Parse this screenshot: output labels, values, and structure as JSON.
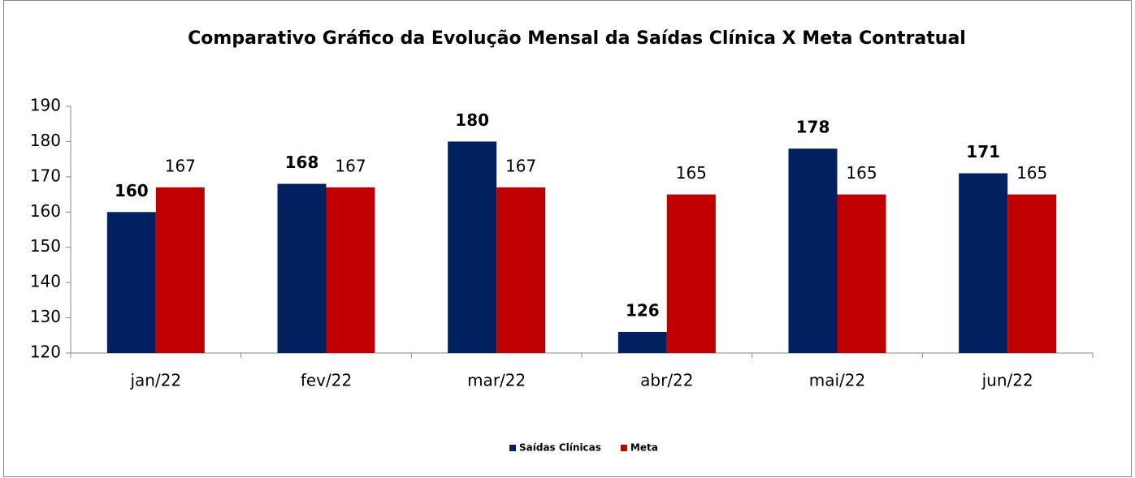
{
  "chart_data": {
    "type": "bar",
    "title": "Comparativo Gráfico da Evolução Mensal da Saídas Clínica X Meta Contratual",
    "categories": [
      "jan/22",
      "fev/22",
      "mar/22",
      "abr/22",
      "mai/22",
      "jun/22"
    ],
    "series": [
      {
        "name": "Saídas Clínicas",
        "color": "#002060",
        "values": [
          160,
          168,
          180,
          126,
          178,
          171
        ]
      },
      {
        "name": "Meta",
        "color": "#c00000",
        "values": [
          167,
          167,
          167,
          165,
          165,
          165
        ]
      }
    ],
    "ylim": [
      120,
      190
    ],
    "yticks": [
      120,
      130,
      140,
      150,
      160,
      170,
      180,
      190
    ],
    "legend": "bottom"
  }
}
